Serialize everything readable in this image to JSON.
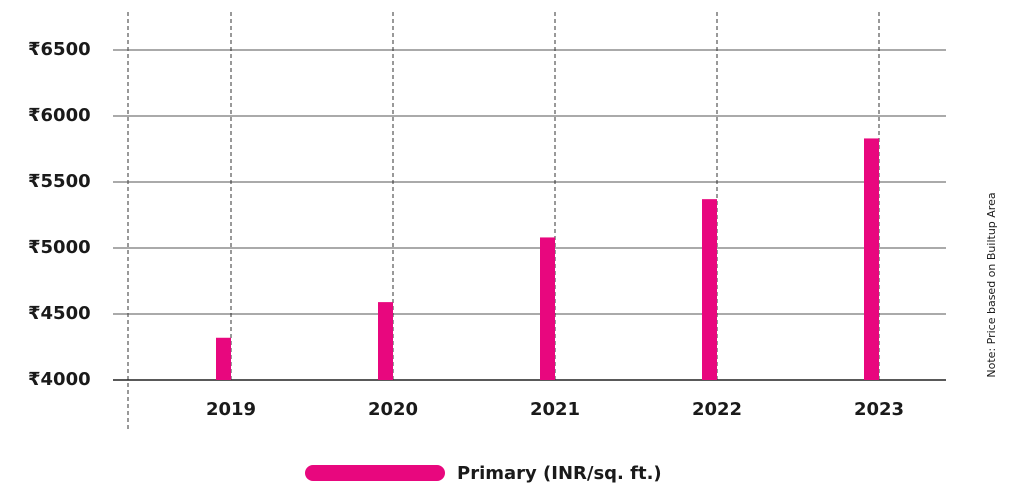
{
  "chart_data": {
    "type": "bar",
    "categories": [
      "2019",
      "2020",
      "2021",
      "2022",
      "2023"
    ],
    "series": [
      {
        "name": "Primary (INR/sq. ft.)",
        "color": "#e8077e",
        "values": [
          4320,
          4590,
          5080,
          5370,
          5830
        ]
      }
    ],
    "ylim": [
      4000,
      6500
    ],
    "yticks": [
      {
        "value": 4000,
        "label": "₹4000"
      },
      {
        "value": 4500,
        "label": "₹4500"
      },
      {
        "value": 5000,
        "label": "₹5000"
      },
      {
        "value": 5500,
        "label": "₹5500"
      },
      {
        "value": 6000,
        "label": "₹6000"
      },
      {
        "value": 6500,
        "label": "₹6500"
      }
    ],
    "grid": true,
    "note": "Note: Price based on Builtup Area",
    "legend": "bottom"
  }
}
